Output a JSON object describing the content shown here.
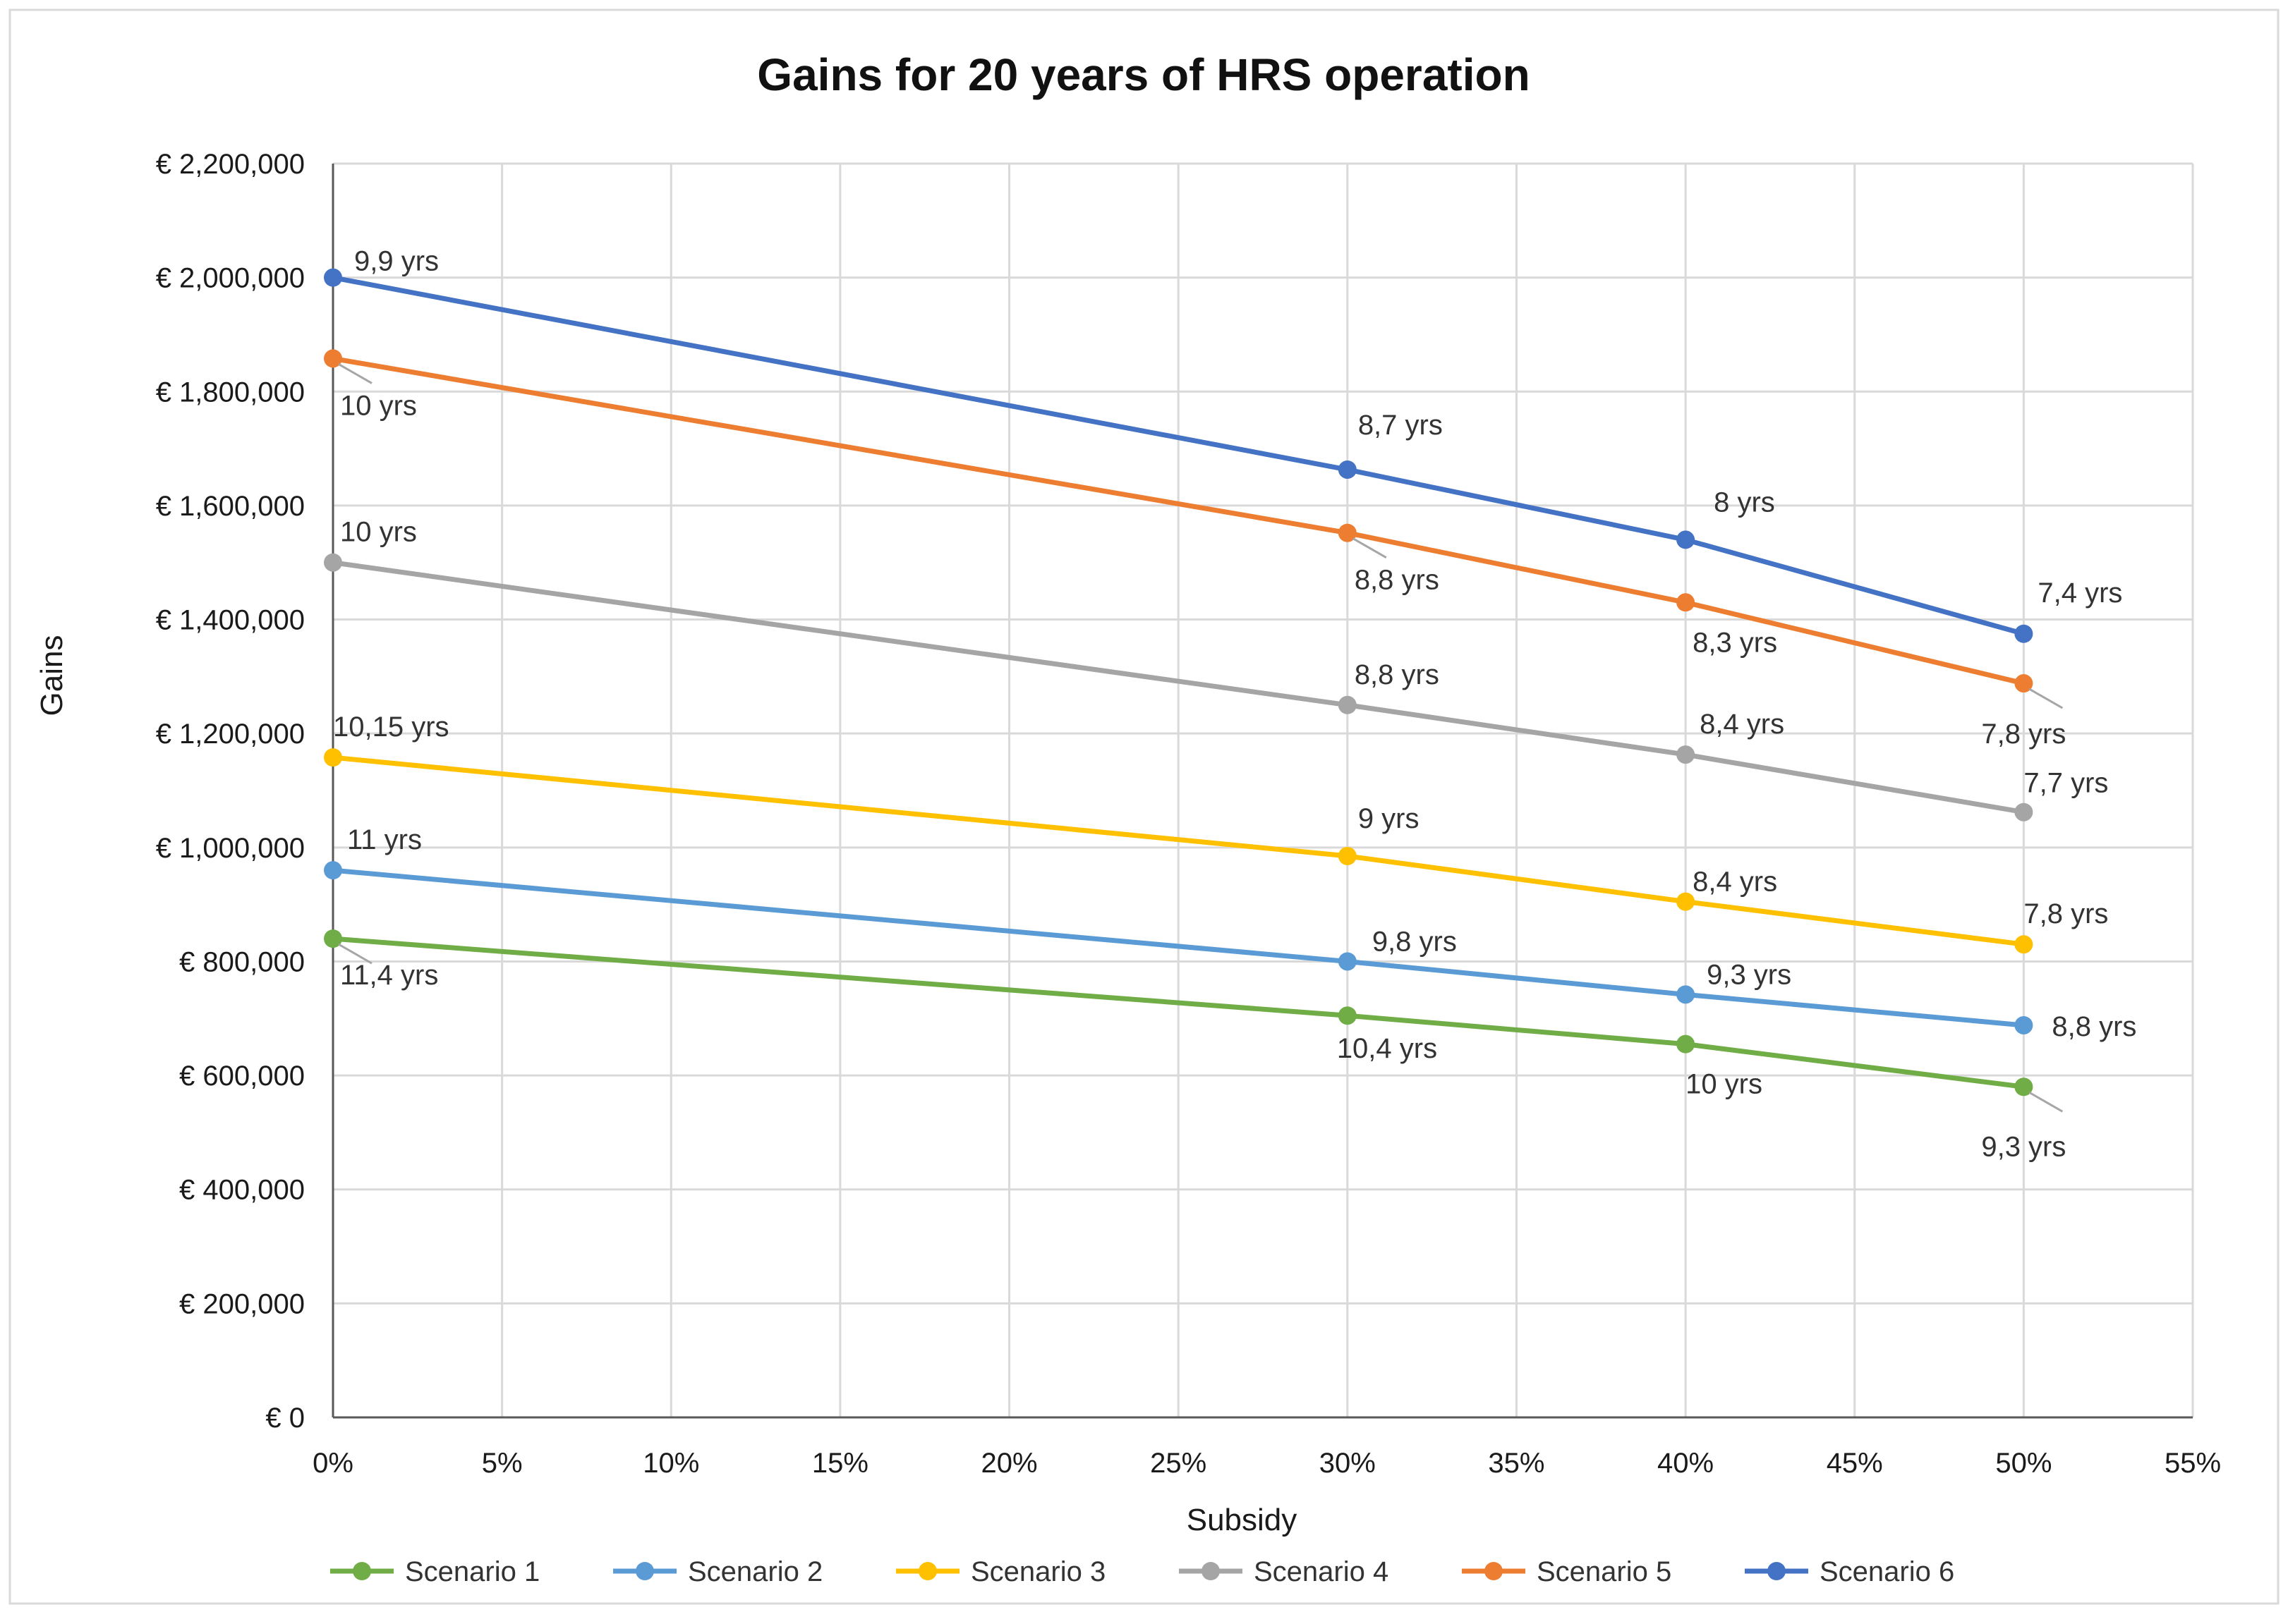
{
  "chart_data": {
    "type": "line",
    "title": "Gains for 20 years of HRS operation",
    "xlabel": "Subsidy",
    "ylabel": "Gains",
    "x": [
      0,
      30,
      40,
      50
    ],
    "xlim": [
      0,
      55
    ],
    "ylim": [
      0,
      2200000
    ],
    "x_ticks": [
      0,
      5,
      10,
      15,
      20,
      25,
      30,
      35,
      40,
      45,
      50,
      55
    ],
    "x_tick_labels": [
      "0%",
      "5%",
      "10%",
      "15%",
      "20%",
      "25%",
      "30%",
      "35%",
      "40%",
      "45%",
      "50%",
      "55%"
    ],
    "y_ticks": [
      0,
      200000,
      400000,
      600000,
      800000,
      1000000,
      1200000,
      1400000,
      1600000,
      1800000,
      2000000,
      2200000
    ],
    "y_tick_labels": [
      "€ 0",
      "€ 200,000",
      "€ 400,000",
      "€ 600,000",
      "€ 800,000",
      "€ 1,000,000",
      "€ 1,200,000",
      "€ 1,400,000",
      "€ 1,600,000",
      "€ 1,800,000",
      "€ 2,000,000",
      "€ 2,200,000"
    ],
    "grid": true,
    "legend_position": "bottom",
    "series": [
      {
        "name": "Scenario 1",
        "color": "#70ad47",
        "values": [
          840000,
          705000,
          655000,
          580000
        ],
        "labels": [
          "11,4 yrs",
          "10,4 yrs",
          "10 yrs",
          "9,3 yrs"
        ]
      },
      {
        "name": "Scenario 2",
        "color": "#5b9bd5",
        "values": [
          960000,
          800000,
          742000,
          688000
        ],
        "labels": [
          "11 yrs",
          "9,8 yrs",
          "9,3 yrs",
          "8,8 yrs"
        ]
      },
      {
        "name": "Scenario 3",
        "color": "#ffc000",
        "values": [
          1158000,
          985000,
          905000,
          830000
        ],
        "labels": [
          "10,15 yrs",
          "9 yrs",
          "8,4 yrs",
          "7,8 yrs"
        ]
      },
      {
        "name": "Scenario 4",
        "color": "#a5a5a5",
        "values": [
          1500000,
          1250000,
          1163000,
          1062000
        ],
        "labels": [
          "10 yrs",
          "8,8 yrs",
          "8,4 yrs",
          "7,7 yrs"
        ]
      },
      {
        "name": "Scenario 5",
        "color": "#ed7d31",
        "values": [
          1858000,
          1552000,
          1430000,
          1288000
        ],
        "labels": [
          "10 yrs",
          "8,8 yrs",
          "8,3 yrs",
          "7,8 yrs"
        ]
      },
      {
        "name": "Scenario 6",
        "color": "#4472c4",
        "values": [
          2000000,
          1663000,
          1540000,
          1375000
        ],
        "labels": [
          "9,9 yrs",
          "8,7 yrs",
          "8 yrs",
          "7,4 yrs"
        ]
      }
    ]
  }
}
